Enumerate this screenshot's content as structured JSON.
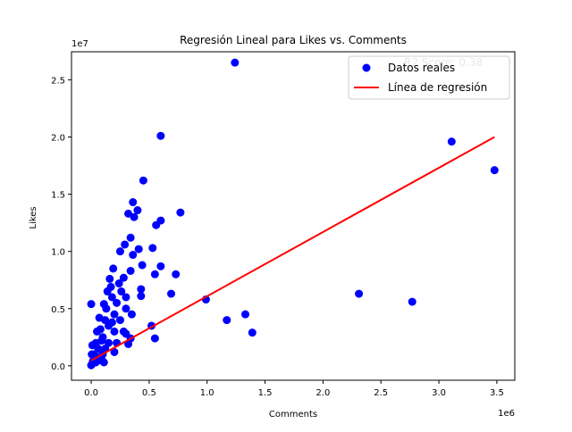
{
  "chart_data": {
    "type": "scatter",
    "title": "Regresión Lineal para Likes vs. Comments",
    "x_label": "Comments",
    "y_label": "Likes",
    "x_offset_text": "1e6",
    "y_offset_text": "1e7",
    "annotation": "R2 Score: 0.38",
    "legend": "upper right",
    "xlim": [
      -170000,
      3655000
    ],
    "ylim": [
      -1260000,
      27450000
    ],
    "xticks": [
      {
        "value": 0,
        "label": "0.0"
      },
      {
        "value": 500000,
        "label": "0.5"
      },
      {
        "value": 1000000,
        "label": "1.0"
      },
      {
        "value": 1500000,
        "label": "1.5"
      },
      {
        "value": 2000000,
        "label": "2.0"
      },
      {
        "value": 2500000,
        "label": "2.5"
      },
      {
        "value": 3000000,
        "label": "3.0"
      },
      {
        "value": 3500000,
        "label": "3.5"
      }
    ],
    "yticks": [
      {
        "value": 0,
        "label": "0.0"
      },
      {
        "value": 5000000,
        "label": "0.5"
      },
      {
        "value": 10000000,
        "label": "1.0"
      },
      {
        "value": 15000000,
        "label": "1.5"
      },
      {
        "value": 20000000,
        "label": "2.0"
      },
      {
        "value": 25000000,
        "label": "2.5"
      }
    ],
    "series": [
      {
        "name": "Datos reales",
        "color": "#0000ff",
        "kind": "markers",
        "x": [
          1240000,
          600000,
          3110000,
          3480000,
          450000,
          770000,
          360000,
          400000,
          320000,
          370000,
          600000,
          560000,
          340000,
          290000,
          530000,
          410000,
          250000,
          360000,
          600000,
          440000,
          190000,
          340000,
          730000,
          550000,
          280000,
          170000,
          430000,
          690000,
          2310000,
          430000,
          990000,
          2770000,
          110000,
          0,
          1330000,
          1170000,
          520000,
          1390000,
          550000,
          340000,
          320000,
          220000,
          20000,
          50000,
          80000,
          100000,
          120000,
          150000,
          50000,
          200000,
          150000,
          100000,
          250000,
          300000,
          200000,
          120000,
          180000,
          220000,
          60000,
          30000,
          10000,
          0,
          80000,
          280000,
          300000,
          100000,
          140000,
          240000,
          160000,
          300000,
          40000,
          200000,
          10000,
          5000,
          70000,
          130000,
          90000,
          260000,
          350000,
          180000,
          15000,
          40000,
          110000
        ],
        "values": [
          26500000,
          20100000,
          19600000,
          17100000,
          16200000,
          13400000,
          14300000,
          13600000,
          13300000,
          13000000,
          12700000,
          12300000,
          11200000,
          10600000,
          10300000,
          10200000,
          10000000,
          9700000,
          8700000,
          8800000,
          8500000,
          8300000,
          8000000,
          8000000,
          7700000,
          6900000,
          6700000,
          6300000,
          6300000,
          6100000,
          5800000,
          5600000,
          5400000,
          5400000,
          4500000,
          4000000,
          3500000,
          2900000,
          2400000,
          2400000,
          1900000,
          2000000,
          1000000,
          3000000,
          500000,
          1000000,
          1500000,
          2000000,
          800000,
          3000000,
          3500000,
          2500000,
          4000000,
          5000000,
          4500000,
          4000000,
          6000000,
          5500000,
          1500000,
          600000,
          200000,
          50000,
          3200000,
          3000000,
          2800000,
          400000,
          6500000,
          7200000,
          7600000,
          6000000,
          2000000,
          1200000,
          1800000,
          1000000,
          4200000,
          5000000,
          2200000,
          6500000,
          4500000,
          3800000,
          400000,
          300000,
          300000
        ]
      },
      {
        "name": "Línea de regresión",
        "color": "#ff0000",
        "kind": "line",
        "x": [
          0,
          3480000
        ],
        "values": [
          470000,
          20000000
        ]
      }
    ]
  }
}
